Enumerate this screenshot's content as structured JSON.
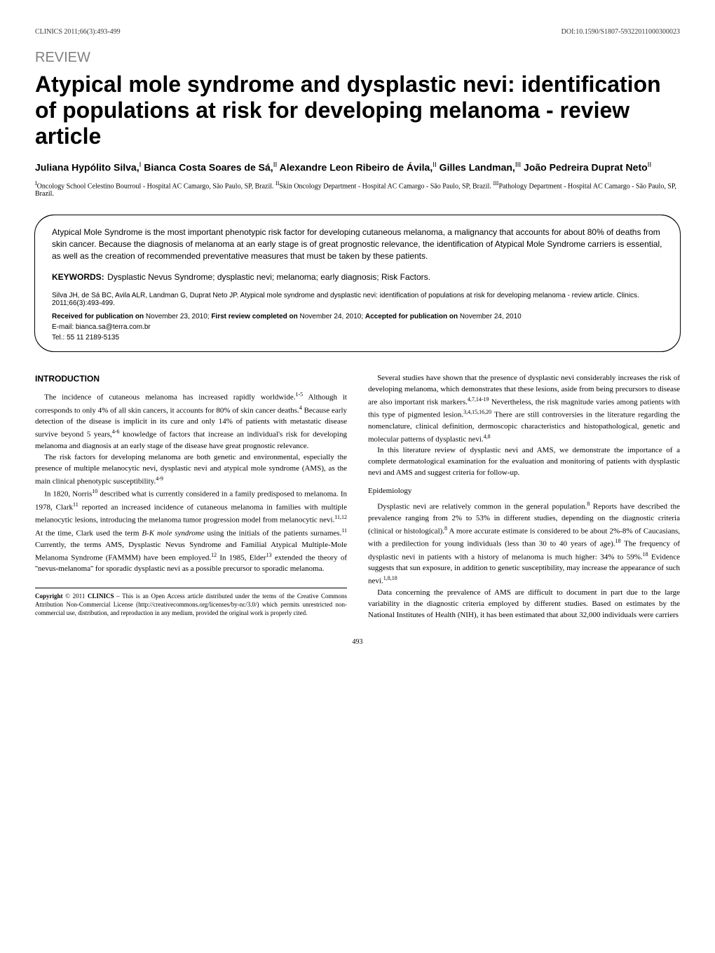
{
  "header": {
    "journal": "CLINICS 2011;66(3):493-499",
    "doi": "DOI:10.1590/S1807-59322011000300023"
  },
  "review_label": "REVIEW",
  "title": "Atypical mole syndrome and dysplastic nevi: identification of populations at risk for developing melanoma - review article",
  "authors_html": "Juliana Hypólito Silva,<sup>I</sup> Bianca Costa Soares de Sá,<sup>II</sup> Alexandre Leon Ribeiro de Ávila,<sup>II</sup> Gilles Landman,<sup>III</sup> João Pedreira Duprat Neto<sup>II</sup>",
  "affiliations_html": "<sup>I</sup>Oncology School Celestino Bourroul - Hospital AC Camargo, São Paulo, SP, Brazil. <sup>II</sup>Skin Oncology Department - Hospital AC Camargo - São Paulo, SP, Brazil. <sup>III</sup>Pathology Department - Hospital AC Camargo - São Paulo, SP, Brazil.",
  "abstract": {
    "text": "Atypical Mole Syndrome is the most important phenotypic risk factor for developing cutaneous melanoma, a malignancy that accounts for about 80% of deaths from skin cancer. Because the diagnosis of melanoma at an early stage is of great prognostic relevance, the identification of Atypical Mole Syndrome carriers is essential, as well as the creation of recommended preventative measures that must be taken by these patients.",
    "keywords_label": "KEYWORDS:",
    "keywords": "Dysplastic Nevus Syndrome; dysplastic nevi; melanoma; early diagnosis; Risk Factors.",
    "citation": "Silva JH, de Sá BC, Avila ALR, Landman G, Duprat Neto JP. Atypical mole syndrome and dysplastic nevi: identification of populations at risk for developing melanoma - review article. Clinics. 2011;66(3):493-499.",
    "received_label": "Received for publication on",
    "received_date": "November 23, 2010;",
    "first_review_label": "First review completed on",
    "first_review_date": "November 24, 2010;",
    "accepted_label": "Accepted for publication on",
    "accepted_date": "November 24, 2010",
    "email": "E-mail: bianca.sa@terra.com.br",
    "tel": "Tel.: 55 11 2189-5135"
  },
  "body": {
    "introduction_heading": "INTRODUCTION",
    "col1_p1": "The incidence of cutaneous melanoma has increased rapidly worldwide.<sup class=\"ref\">1-5</sup> Although it corresponds to only 4% of all skin cancers, it accounts for 80% of skin cancer deaths.<sup class=\"ref\">4</sup> Because early detection of the disease is implicit in its cure and only 14% of patients with metastatic disease survive beyond 5 years,<sup class=\"ref\">4-6</sup> knowledge of factors that increase an individual's risk for developing melanoma and diagnosis at an early stage of the disease have great prognostic relevance.",
    "col1_p2": "The risk factors for developing melanoma are both genetic and environmental, especially the presence of multiple melanocytic nevi, dysplastic nevi and atypical mole syndrome (AMS), as the main clinical phenotypic susceptibility.<sup class=\"ref\">4-9</sup>",
    "col1_p3": "In 1820, Norris<sup class=\"ref\">10</sup> described what is currently considered in a family predisposed to melanoma. In 1978, Clark<sup class=\"ref\">11</sup> reported an increased incidence of cutaneous melanoma in families with multiple melanocytic lesions, introducing the melanoma tumor progression model from melanocytic nevi.<sup class=\"ref\">11,12</sup> At the time, Clark used the term <i>B-K mole syndrome</i> using the initials of the patients surnames.<sup class=\"ref\">11</sup> Currently, the terms AMS, Dysplastic Nevus Syndrome and Familial Atypical Multiple-Mole Melanoma Syndrome (FAMMM) have been employed.<sup class=\"ref\">12</sup> In 1985, Elder<sup class=\"ref\">13</sup> extended the theory of ''nevus-melanoma'' for sporadic dysplastic nevi as a possible precursor to sporadic melanoma.",
    "col2_p1": "Several studies have shown that the presence of dysplastic nevi considerably increases the risk of developing melanoma, which demonstrates that these lesions, aside from being precursors to disease are also important risk markers.<sup class=\"ref\">4,7,14-19</sup> Nevertheless, the risk magnitude varies among patients with this type of pigmented lesion.<sup class=\"ref\">3,4,15,16,20</sup> There are still controversies in the literature regarding the nomenclature, clinical definition, dermoscopic characteristics and histopathological, genetic and molecular patterns of dysplastic nevi.<sup class=\"ref\">4,8</sup>",
    "col2_p2": "In this literature review of dysplastic nevi and AMS, we demonstrate the importance of a complete dermatological examination for the evaluation and monitoring of patients with dysplastic nevi and AMS and suggest criteria for follow-up.",
    "epidemiology_heading": "Epidemiology",
    "col2_p3": "Dysplastic nevi are relatively common in the general population.<sup class=\"ref\">8</sup> Reports have described the prevalence ranging from 2% to 53% in different studies, depending on the diagnostic criteria (clinical or histological).<sup class=\"ref\">8</sup> A more accurate estimate is considered to be about 2%-8% of Caucasians, with a predilection for young individuals (less than 30 to 40 years of age).<sup class=\"ref\">18</sup> The frequency of dysplastic nevi in patients with a history of melanoma is much higher: 34% to 59%.<sup class=\"ref\">18</sup> Evidence suggests that sun exposure, in addition to genetic susceptibility, may increase the appearance of such nevi.<sup class=\"ref\">1,8,18</sup>",
    "col2_p4": "Data concerning the prevalence of AMS are difficult to document in part due to the large variability in the diagnostic criteria employed by different studies. Based on estimates by the National Institutes of Health (NIH), it has been estimated that about 32,000 individuals were carriers"
  },
  "copyright": {
    "bold": "Copyright",
    "text": "© 2011 <b>CLINICS</b> – This is an Open Access article distributed under the terms of the Creative Commons Attribution Non-Commercial License (http://creativecommons.org/licenses/by-nc/3.0/) which permits unrestricted non-commercial use, distribution, and reproduction in any medium, provided the original work is properly cited."
  },
  "page_number": "493"
}
